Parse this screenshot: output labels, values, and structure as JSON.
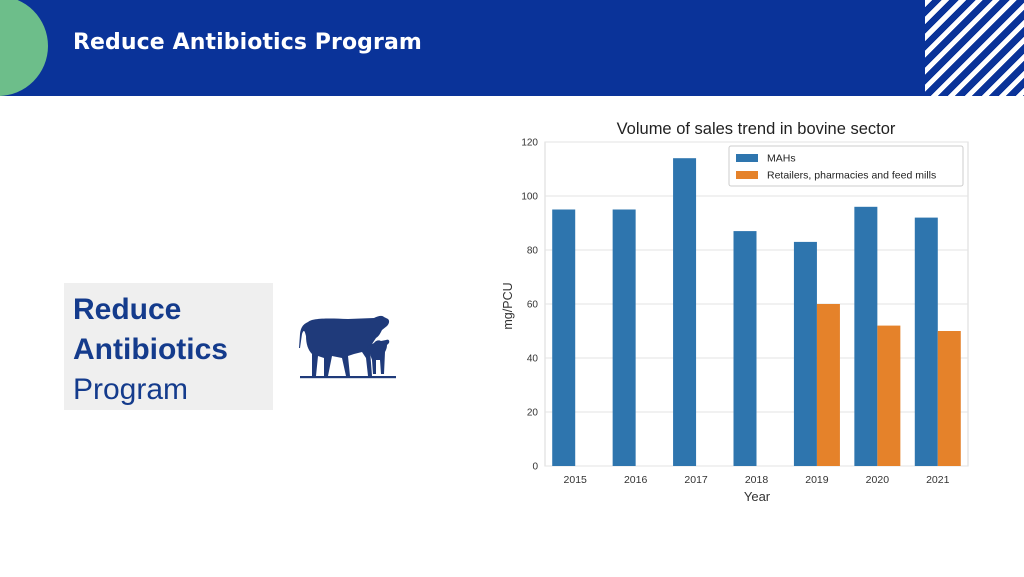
{
  "header": {
    "title": "Reduce Antibiotics Program"
  },
  "card": {
    "line1": "Reduce",
    "line2": "Antibiotics",
    "line3": "Program"
  },
  "icons": {
    "cow": "cow-with-calf-icon"
  },
  "colors": {
    "header_bg": "#0A3399",
    "accent_green": "#6DBE8A",
    "card_text": "#143B8C",
    "series_mahs": "#2E75AE",
    "series_retailers": "#E5822A"
  },
  "chart_data": {
    "type": "bar",
    "title": "Volume of sales trend in bovine sector",
    "xlabel": "Year",
    "ylabel": "mg/PCU",
    "categories": [
      "2015",
      "2016",
      "2017",
      "2018",
      "2019",
      "2020",
      "2021"
    ],
    "ylim": [
      0,
      120
    ],
    "yticks": [
      0,
      20,
      40,
      60,
      80,
      100,
      120
    ],
    "grid": true,
    "legend_position": "top-right",
    "series": [
      {
        "name": "MAHs",
        "color": "#2E75AE",
        "values": [
          95,
          95,
          114,
          87,
          83,
          96,
          92
        ]
      },
      {
        "name": "Retailers, pharmacies and feed mills",
        "color": "#E5822A",
        "values": [
          null,
          null,
          null,
          null,
          60,
          52,
          50
        ]
      }
    ]
  }
}
